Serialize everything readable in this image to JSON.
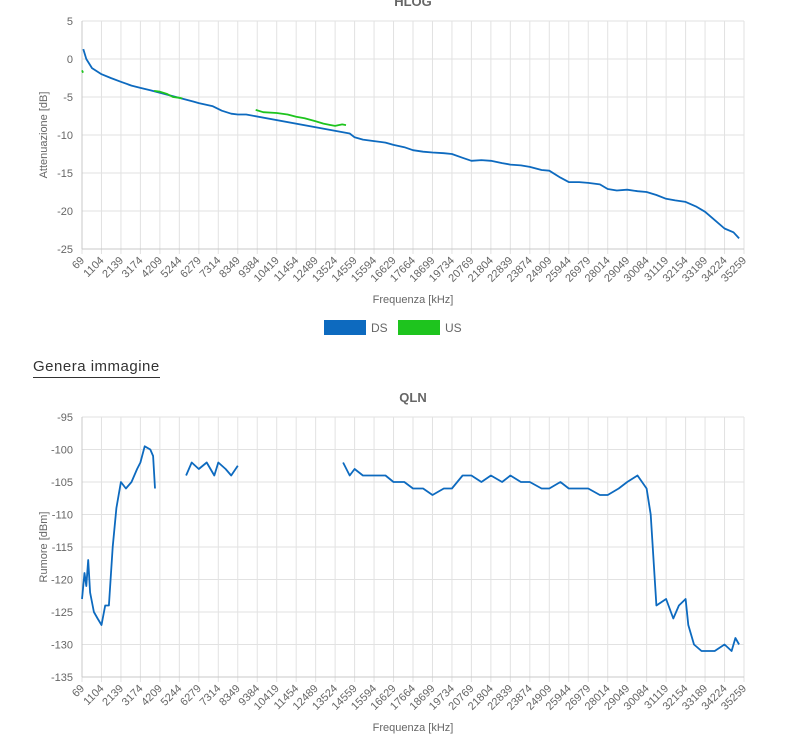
{
  "genera_link": "Genera immagine",
  "colors": {
    "ds": "#0d6abf",
    "us": "#1ec41e"
  },
  "chart_data": [
    {
      "type": "line",
      "title": "HLOG",
      "xlabel": "Frequenza [kHz]",
      "ylabel": "Attenuazione [dB]",
      "x_ticks": [
        "69",
        "1104",
        "2139",
        "3174",
        "4209",
        "5244",
        "6279",
        "7314",
        "8349",
        "9384",
        "10419",
        "11454",
        "12489",
        "13524",
        "14559",
        "15594",
        "16629",
        "17664",
        "18699",
        "19734",
        "20769",
        "21804",
        "22839",
        "23874",
        "24909",
        "25944",
        "26979",
        "28014",
        "29049",
        "30084",
        "31119",
        "32154",
        "33189",
        "34224",
        "35259"
      ],
      "ylim": [
        -25,
        5
      ],
      "y_ticks": [
        5,
        0,
        -5,
        -10,
        -15,
        -20,
        -25
      ],
      "legend": {
        "position": "bottom",
        "entries": [
          "DS",
          "US"
        ]
      },
      "series": [
        {
          "name": "DS",
          "color": "#0d6abf",
          "points": [
            [
              138,
              1.3
            ],
            [
              300,
              0
            ],
            [
              600,
              -1.2
            ],
            [
              1104,
              -2.0
            ],
            [
              1600,
              -2.5
            ],
            [
              2139,
              -3.0
            ],
            [
              2700,
              -3.5
            ],
            [
              3174,
              -3.8
            ],
            [
              3700,
              -4.1
            ],
            [
              6000,
              -5.6
            ],
            [
              6279,
              -5.8
            ],
            [
              7000,
              -6.2
            ],
            [
              7500,
              -6.8
            ],
            [
              8000,
              -7.2
            ],
            [
              8349,
              -7.3
            ],
            [
              8800,
              -7.3
            ],
            [
              14300,
              -9.8
            ],
            [
              14559,
              -10.3
            ],
            [
              15000,
              -10.6
            ],
            [
              15594,
              -10.8
            ],
            [
              16200,
              -11.0
            ],
            [
              16629,
              -11.3
            ],
            [
              17200,
              -11.6
            ],
            [
              17664,
              -12.0
            ],
            [
              18200,
              -12.2
            ],
            [
              18699,
              -12.3
            ],
            [
              19300,
              -12.4
            ],
            [
              19734,
              -12.5
            ],
            [
              20300,
              -13.0
            ],
            [
              20769,
              -13.4
            ],
            [
              21300,
              -13.3
            ],
            [
              21804,
              -13.4
            ],
            [
              22400,
              -13.7
            ],
            [
              22839,
              -13.9
            ],
            [
              23400,
              -14.0
            ],
            [
              23874,
              -14.2
            ],
            [
              24500,
              -14.6
            ],
            [
              24909,
              -14.7
            ],
            [
              25500,
              -15.6
            ],
            [
              25944,
              -16.2
            ],
            [
              26500,
              -16.2
            ],
            [
              26979,
              -16.3
            ],
            [
              27600,
              -16.5
            ],
            [
              28014,
              -17.1
            ],
            [
              28500,
              -17.3
            ],
            [
              29049,
              -17.2
            ],
            [
              29600,
              -17.4
            ],
            [
              30084,
              -17.5
            ],
            [
              30600,
              -17.9
            ],
            [
              31119,
              -18.4
            ],
            [
              31600,
              -18.6
            ],
            [
              32154,
              -18.8
            ],
            [
              32700,
              -19.4
            ],
            [
              33189,
              -20.1
            ],
            [
              33700,
              -21.2
            ],
            [
              34224,
              -22.3
            ],
            [
              34700,
              -22.8
            ],
            [
              35000,
              -23.6
            ]
          ]
        },
        {
          "name": "US",
          "color": "#1ec41e",
          "points": [
            [
              69,
              -1.5
            ],
            [
              130,
              -1.8
            ]
          ],
          "points2": [
            [
              3900,
              -4.2
            ],
            [
              4209,
              -4.3
            ],
            [
              4600,
              -4.6
            ],
            [
              4900,
              -5.0
            ],
            [
              5244,
              -5.1
            ],
            [
              5400,
              -5.2
            ]
          ],
          "points3": [
            [
              9300,
              -6.7
            ],
            [
              9700,
              -7.0
            ],
            [
              10419,
              -7.1
            ],
            [
              11000,
              -7.3
            ],
            [
              11454,
              -7.6
            ],
            [
              11900,
              -7.8
            ],
            [
              12489,
              -8.2
            ],
            [
              12900,
              -8.5
            ],
            [
              13300,
              -8.7
            ],
            [
              13524,
              -8.8
            ],
            [
              13900,
              -8.6
            ],
            [
              14100,
              -8.7
            ]
          ]
        }
      ]
    },
    {
      "type": "line",
      "title": "QLN",
      "xlabel": "Frequenza [kHz]",
      "ylabel": "Rumore [dBm]",
      "x_ticks": [
        "69",
        "1104",
        "2139",
        "3174",
        "4209",
        "5244",
        "6279",
        "7314",
        "8349",
        "9384",
        "10419",
        "11454",
        "12489",
        "13524",
        "14559",
        "15594",
        "16629",
        "17664",
        "18699",
        "19734",
        "20769",
        "21804",
        "22839",
        "23874",
        "24909",
        "25944",
        "26979",
        "28014",
        "29049",
        "30084",
        "31119",
        "32154",
        "33189",
        "34224",
        "35259"
      ],
      "ylim": [
        -135,
        -95
      ],
      "y_ticks": [
        -95,
        -100,
        -105,
        -110,
        -115,
        -120,
        -125,
        -130,
        -135
      ],
      "series": [
        {
          "name": "DS",
          "color": "#0d6abf",
          "segments": [
            [
              [
                69,
                -123
              ],
              [
                200,
                -119
              ],
              [
                300,
                -121
              ],
              [
                400,
                -117
              ],
              [
                500,
                -122
              ],
              [
                700,
                -125
              ],
              [
                900,
                -126
              ],
              [
                1104,
                -127
              ],
              [
                1300,
                -124
              ],
              [
                1500,
                -124
              ],
              [
                1700,
                -115
              ],
              [
                1900,
                -109
              ],
              [
                2139,
                -105
              ],
              [
                2400,
                -106
              ],
              [
                2700,
                -105
              ],
              [
                3000,
                -103
              ],
              [
                3174,
                -102
              ],
              [
                3400,
                -99.5
              ],
              [
                3700,
                -100
              ],
              [
                3850,
                -101
              ],
              [
                3950,
                -106
              ]
            ],
            [
              [
                5600,
                -104
              ],
              [
                5900,
                -102
              ],
              [
                6279,
                -103
              ],
              [
                6700,
                -102
              ],
              [
                7100,
                -104
              ],
              [
                7314,
                -102
              ],
              [
                7700,
                -103
              ],
              [
                8000,
                -104
              ],
              [
                8349,
                -102.5
              ]
            ],
            [
              [
                13950,
                -102
              ],
              [
                14300,
                -104
              ],
              [
                14559,
                -103
              ],
              [
                15000,
                -104
              ],
              [
                15594,
                -104
              ],
              [
                16200,
                -104
              ],
              [
                16629,
                -105
              ],
              [
                17200,
                -105
              ],
              [
                17664,
                -106
              ],
              [
                18200,
                -106
              ],
              [
                18699,
                -107
              ],
              [
                19300,
                -106
              ],
              [
                19734,
                -106
              ],
              [
                20300,
                -104
              ],
              [
                20769,
                -104
              ],
              [
                21300,
                -105
              ],
              [
                21804,
                -104
              ],
              [
                22400,
                -105
              ],
              [
                22839,
                -104
              ],
              [
                23400,
                -105
              ],
              [
                23874,
                -105
              ],
              [
                24500,
                -106
              ],
              [
                24909,
                -106
              ],
              [
                25500,
                -105
              ],
              [
                25944,
                -106
              ],
              [
                26500,
                -106
              ],
              [
                26979,
                -106
              ],
              [
                27600,
                -107
              ],
              [
                28014,
                -107
              ],
              [
                28600,
                -106
              ],
              [
                29049,
                -105
              ],
              [
                29600,
                -104
              ],
              [
                30084,
                -106
              ],
              [
                30300,
                -110
              ],
              [
                30600,
                -124
              ],
              [
                31119,
                -123
              ],
              [
                31500,
                -126
              ],
              [
                31800,
                -124
              ],
              [
                32154,
                -123
              ],
              [
                32300,
                -127
              ],
              [
                32600,
                -130
              ],
              [
                33000,
                -131
              ],
              [
                33189,
                -131
              ],
              [
                33700,
                -131
              ],
              [
                34224,
                -130
              ],
              [
                34600,
                -131
              ],
              [
                34800,
                -129
              ],
              [
                35000,
                -130
              ]
            ]
          ]
        }
      ]
    }
  ]
}
